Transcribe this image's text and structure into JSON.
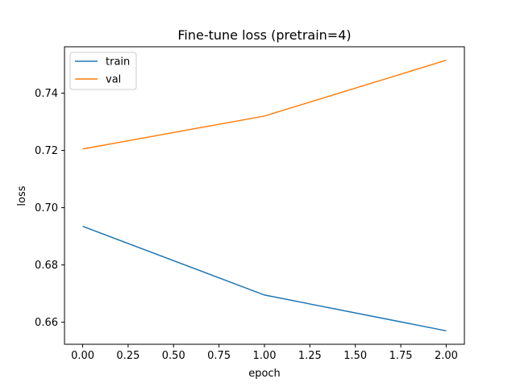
{
  "chart_data": {
    "type": "line",
    "title": "Fine-tune loss (pretrain=4)",
    "xlabel": "epoch",
    "ylabel": "loss",
    "x": [
      0,
      1,
      2
    ],
    "series": [
      {
        "name": "train",
        "values": [
          0.6935,
          0.6695,
          0.657
        ],
        "color": "#1f77b4"
      },
      {
        "name": "val",
        "values": [
          0.7205,
          0.732,
          0.7515
        ],
        "color": "#ff7f0e"
      }
    ],
    "xlim": [
      -0.1,
      2.1
    ],
    "ylim": [
      0.6523,
      0.7562
    ],
    "xticks": [
      0.0,
      0.25,
      0.5,
      0.75,
      1.0,
      1.25,
      1.5,
      1.75,
      2.0
    ],
    "xtick_labels": [
      "0.00",
      "0.25",
      "0.50",
      "0.75",
      "1.00",
      "1.25",
      "1.50",
      "1.75",
      "2.00"
    ],
    "yticks": [
      0.66,
      0.68,
      0.7,
      0.72,
      0.74
    ],
    "ytick_labels": [
      "0.66",
      "0.68",
      "0.70",
      "0.72",
      "0.74"
    ],
    "grid": false,
    "legend_position": "top-left"
  }
}
